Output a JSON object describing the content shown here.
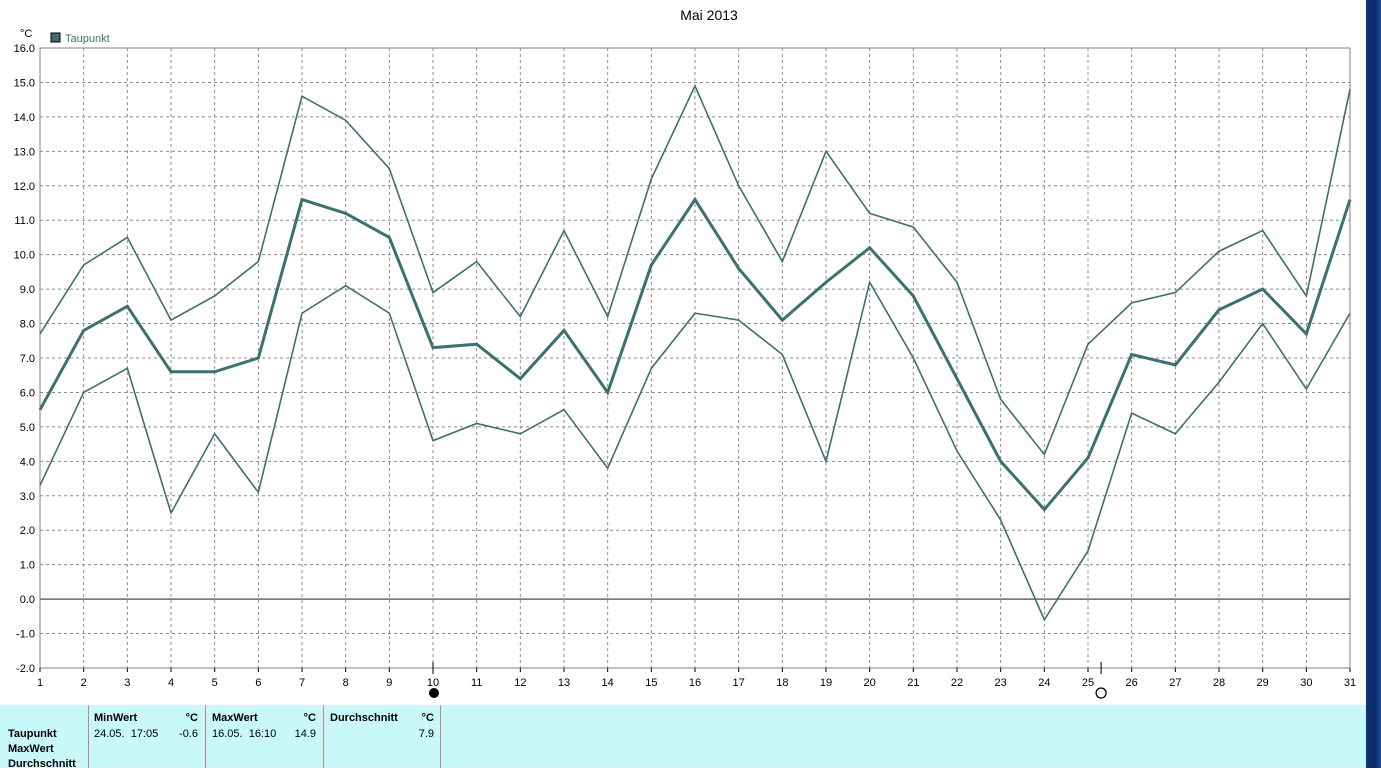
{
  "chart_data": {
    "type": "line",
    "title": "Mai 2013",
    "yunit": "°C",
    "legend": {
      "label": "Taupunkt",
      "color": "#3d7070",
      "placement": "top-left"
    },
    "x": [
      1,
      2,
      3,
      4,
      5,
      6,
      7,
      8,
      9,
      10,
      11,
      12,
      13,
      14,
      15,
      16,
      17,
      18,
      19,
      20,
      21,
      22,
      23,
      24,
      25,
      26,
      27,
      28,
      29,
      30,
      31
    ],
    "xlim": [
      1,
      31
    ],
    "ylim": [
      -2,
      16
    ],
    "yticks": [
      16,
      15,
      14,
      13,
      12,
      11,
      10,
      9,
      8,
      7,
      6,
      5,
      4,
      3,
      2,
      1,
      0,
      -1,
      -2
    ],
    "grid": true,
    "series": [
      {
        "role": "max",
        "values": [
          7.7,
          9.7,
          10.5,
          8.1,
          8.8,
          9.8,
          14.6,
          13.9,
          12.5,
          8.9,
          9.8,
          8.2,
          10.7,
          8.2,
          12.2,
          14.9,
          12.0,
          9.8,
          13.0,
          11.2,
          10.8,
          9.2,
          5.8,
          4.2,
          7.4,
          8.6,
          8.9,
          10.1,
          10.7,
          8.8,
          14.8
        ]
      },
      {
        "role": "avg",
        "values": [
          5.5,
          7.8,
          8.5,
          6.6,
          6.6,
          7.0,
          11.6,
          11.2,
          10.5,
          7.3,
          7.4,
          6.4,
          7.8,
          6.0,
          9.7,
          11.6,
          9.6,
          8.1,
          9.2,
          10.2,
          8.8,
          6.4,
          4.0,
          2.6,
          4.1,
          7.1,
          6.8,
          8.4,
          9.0,
          7.7,
          11.6
        ]
      },
      {
        "role": "min",
        "values": [
          3.3,
          6.0,
          6.7,
          2.5,
          4.8,
          3.1,
          8.3,
          9.1,
          8.3,
          4.6,
          5.1,
          4.8,
          5.5,
          3.8,
          6.7,
          8.3,
          8.1,
          7.1,
          4.0,
          9.2,
          7.0,
          4.3,
          2.3,
          -0.6,
          1.4,
          5.4,
          4.8,
          6.3,
          8.0,
          6.1,
          8.3
        ]
      }
    ],
    "annotations": [
      {
        "x": 10,
        "symbol": "new-moon-icon"
      },
      {
        "x": 25.3,
        "symbol": "full-moon-icon"
      }
    ]
  },
  "stats": {
    "row_labels": [
      "Taupunkt",
      "MaxWert",
      "Durchschnitt"
    ],
    "columns": [
      {
        "header": "MinWert",
        "unit": "°C",
        "date": "24.05.  17:05",
        "value": "-0.6"
      },
      {
        "header": "MaxWert",
        "unit": "°C",
        "date": "16.05.  16:10",
        "value": "14.9"
      },
      {
        "header": "Durchschnitt",
        "unit": "°C",
        "date": "",
        "value": "7.9"
      }
    ]
  }
}
